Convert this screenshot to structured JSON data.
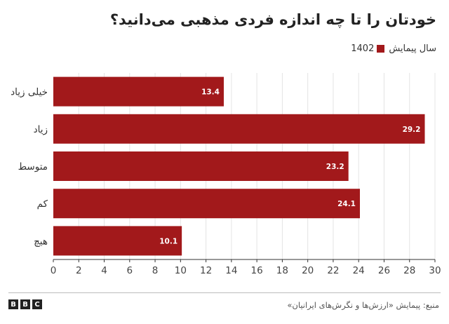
{
  "header": {
    "title": "خودتان را تا چه اندازه فردی مذهبی می‌دانید؟"
  },
  "legend": {
    "label": "سال پیمایش",
    "series_name": "1402",
    "color": "#a2191b"
  },
  "footer": {
    "logo_letters": [
      "B",
      "B",
      "C"
    ],
    "source": "منبع: پیمایش «ارزش‌ها و نگرش‌های ایرانیان»"
  },
  "chart_data": {
    "type": "bar",
    "orientation": "horizontal",
    "categories": [
      "خیلی زیاد",
      "زیاد",
      "متوسط",
      "کم",
      "هیچ"
    ],
    "series": [
      {
        "name": "1402",
        "values": [
          13.4,
          29.2,
          23.2,
          24.1,
          10.1
        ]
      }
    ],
    "xlim": [
      0,
      30
    ],
    "xticks": [
      0,
      2,
      4,
      6,
      8,
      10,
      12,
      14,
      16,
      18,
      20,
      22,
      24,
      26,
      28,
      30
    ],
    "grid": true,
    "legend_position": "top-right",
    "data_labels": true
  }
}
